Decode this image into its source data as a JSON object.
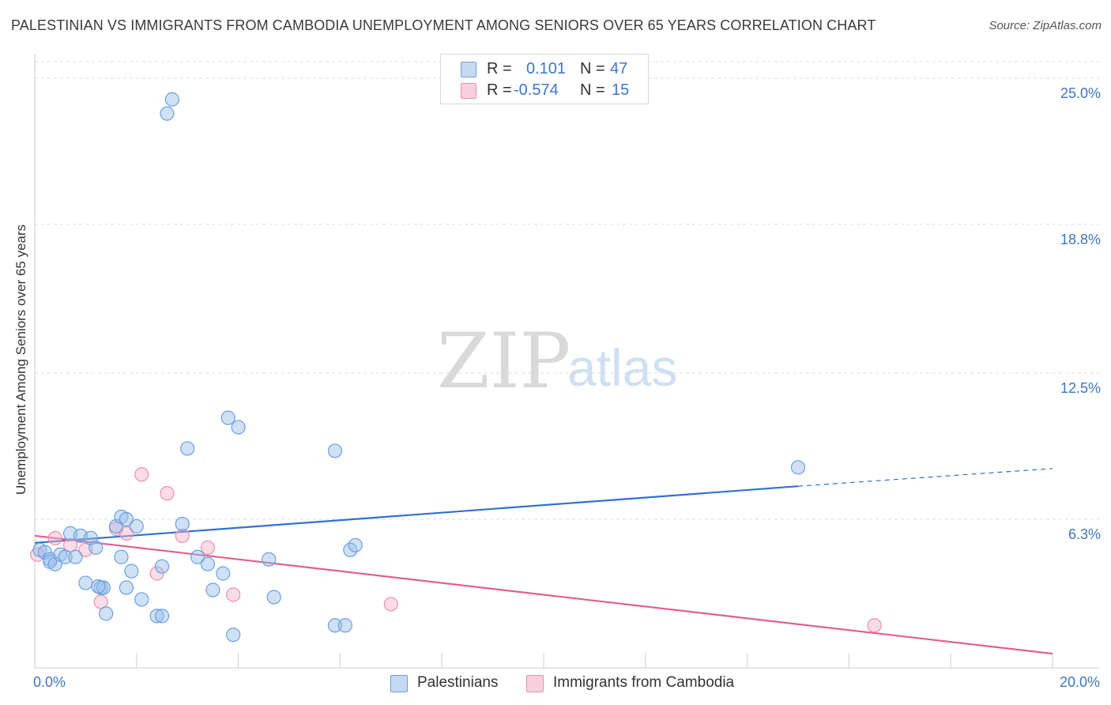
{
  "title": "PALESTINIAN VS IMMIGRANTS FROM CAMBODIA UNEMPLOYMENT AMONG SENIORS OVER 65 YEARS CORRELATION CHART",
  "source": "Source: ZipAtlas.com",
  "watermark": {
    "zip": "ZIP",
    "atlas": "atlas"
  },
  "stats": [
    {
      "r_label": "R =",
      "r_value": "0.101",
      "n_label": "N =",
      "n_value": "47",
      "color": "#6b9fe0"
    },
    {
      "r_label": "R =",
      "r_value": "-0.574",
      "n_label": "N =",
      "n_value": "15",
      "color": "#ee8fac"
    }
  ],
  "legend": [
    {
      "label": "Palestinians",
      "color": "#6b9fe0"
    },
    {
      "label": "Immigrants from Cambodia",
      "color": "#ee8fac"
    }
  ],
  "chart_data": {
    "type": "scatter",
    "title": "PALESTINIAN VS IMMIGRANTS FROM CAMBODIA UNEMPLOYMENT AMONG SENIORS OVER 65 YEARS CORRELATION CHART",
    "xlabel": "",
    "ylabel": "Unemployment Among Seniors over 65 years",
    "xlim": [
      0,
      20
    ],
    "ylim": [
      0,
      25.7
    ],
    "x_tick_labels": [
      {
        "value": 0,
        "label": "0.0%"
      },
      {
        "value": 20,
        "label": "20.0%"
      }
    ],
    "y_tick_labels": [
      {
        "value": 6.3,
        "label": "6.3%"
      },
      {
        "value": 12.5,
        "label": "12.5%"
      },
      {
        "value": 18.8,
        "label": "18.8%"
      },
      {
        "value": 25.0,
        "label": "25.0%"
      }
    ],
    "series": [
      {
        "name": "Palestinians",
        "color": "#6b9fe0",
        "trend": {
          "x0": 0,
          "y0": 5.3,
          "x1": 15.0,
          "y1": 7.7,
          "dash_to_x": 20.0,
          "dash_to_y": 8.45
        },
        "points": [
          [
            0.1,
            5.0
          ],
          [
            0.2,
            4.9
          ],
          [
            0.3,
            4.6
          ],
          [
            0.3,
            4.5
          ],
          [
            0.4,
            4.4
          ],
          [
            0.5,
            4.8
          ],
          [
            0.6,
            4.7
          ],
          [
            0.7,
            5.7
          ],
          [
            0.9,
            5.6
          ],
          [
            1.1,
            5.5
          ],
          [
            1.2,
            5.1
          ],
          [
            1.0,
            3.6
          ],
          [
            1.3,
            3.4
          ],
          [
            1.4,
            2.3
          ],
          [
            1.6,
            6.0
          ],
          [
            1.7,
            4.7
          ],
          [
            1.7,
            6.4
          ],
          [
            1.8,
            6.3
          ],
          [
            1.8,
            3.4
          ],
          [
            1.9,
            4.1
          ],
          [
            2.0,
            6.0
          ],
          [
            2.1,
            2.9
          ],
          [
            2.4,
            2.2
          ],
          [
            2.5,
            2.2
          ],
          [
            2.5,
            4.3
          ],
          [
            2.6,
            23.5
          ],
          [
            2.7,
            24.1
          ],
          [
            2.9,
            6.1
          ],
          [
            3.0,
            9.3
          ],
          [
            3.2,
            4.7
          ],
          [
            3.4,
            4.4
          ],
          [
            3.5,
            3.3
          ],
          [
            3.7,
            4.0
          ],
          [
            3.8,
            10.6
          ],
          [
            3.9,
            1.4
          ],
          [
            4.0,
            10.2
          ],
          [
            4.6,
            4.6
          ],
          [
            4.7,
            3.0
          ],
          [
            5.9,
            9.2
          ],
          [
            5.9,
            1.8
          ],
          [
            6.1,
            1.8
          ],
          [
            6.2,
            5.0
          ],
          [
            6.3,
            5.2
          ],
          [
            15.0,
            8.5
          ],
          [
            1.35,
            3.4
          ],
          [
            0.8,
            4.7
          ],
          [
            1.25,
            3.45
          ]
        ]
      },
      {
        "name": "Immigrants from Cambodia",
        "color": "#ee8fac",
        "trend": {
          "x0": 0,
          "y0": 5.6,
          "x1": 20.0,
          "y1": 0.6
        },
        "points": [
          [
            0.05,
            4.8
          ],
          [
            0.4,
            5.5
          ],
          [
            0.7,
            5.2
          ],
          [
            1.0,
            5.0
          ],
          [
            1.3,
            2.8
          ],
          [
            1.6,
            5.9
          ],
          [
            1.8,
            5.7
          ],
          [
            2.1,
            8.2
          ],
          [
            2.4,
            4.0
          ],
          [
            2.6,
            7.4
          ],
          [
            2.9,
            5.6
          ],
          [
            3.4,
            5.1
          ],
          [
            3.9,
            3.1
          ],
          [
            7.0,
            2.7
          ],
          [
            16.5,
            1.8
          ]
        ]
      }
    ]
  }
}
